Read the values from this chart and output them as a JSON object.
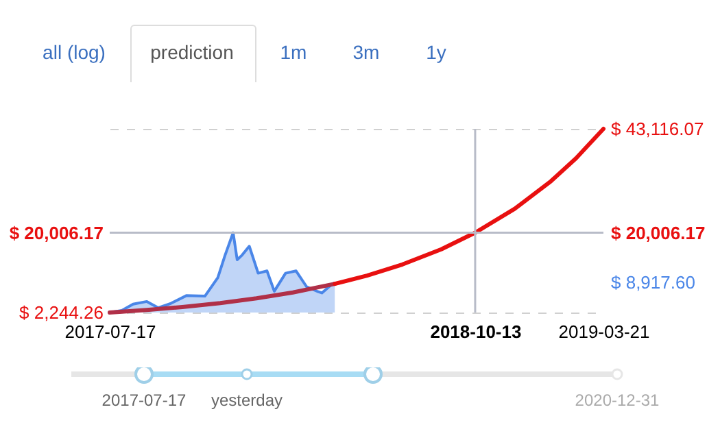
{
  "chart_data": {
    "type": "line",
    "series": [
      {
        "type": "area",
        "color": "#4a86e8",
        "x": [
          "2017-07-17",
          "2017-08-01",
          "2017-08-15",
          "2017-09-01",
          "2017-09-15",
          "2017-10-01",
          "2017-10-20",
          "2017-11-12",
          "2017-11-28",
          "2017-12-07",
          "2017-12-17",
          "2017-12-22",
          "2017-12-28",
          "2018-01-06",
          "2018-01-17",
          "2018-01-28",
          "2018-02-06",
          "2018-02-20",
          "2018-03-05",
          "2018-03-18",
          "2018-04-01",
          "2018-04-06",
          "2018-04-15",
          "2018-04-22"
        ],
        "values": [
          2244.26,
          2700,
          4100,
          4700,
          3300,
          4300,
          6000,
          5900,
          10000,
          15000,
          20006.17,
          14000,
          15000,
          17000,
          11000,
          11500,
          7000,
          11000,
          11500,
          8000,
          6900,
          6600,
          8000,
          8917.6
        ]
      },
      {
        "color": "#b03048",
        "x": [
          "2017-07-17",
          "2017-09-01",
          "2017-10-15",
          "2017-12-01",
          "2018-01-15",
          "2018-03-01",
          "2018-04-22"
        ],
        "values": [
          2244.26,
          2800,
          3470,
          4350,
          5400,
          6710,
          8630
        ]
      },
      {
        "color": "#e81010",
        "x": [
          "2018-04-22",
          "2018-06-01",
          "2018-07-15",
          "2018-09-01",
          "2018-10-13",
          "2018-12-01",
          "2019-01-15",
          "2019-02-15",
          "2019-03-21"
        ],
        "values": [
          8630,
          10470,
          12950,
          16320,
          20006.17,
          25330,
          31480,
          36560,
          43116.07
        ]
      }
    ],
    "xlim": [
      "2017-07-17",
      "2019-03-21"
    ],
    "xticks": [
      "2017-07-17",
      "2018-10-13",
      "2019-03-21"
    ],
    "ylim": [
      2244.26,
      43116.07
    ],
    "yticks": [
      {
        "value": 2244.26,
        "label": "$ 2,244.26"
      },
      {
        "value": 20006.17,
        "label": "$ 20,006.17"
      },
      {
        "value": 43116.07,
        "label": null
      }
    ],
    "y2lim": [
      2244.26,
      43116.07
    ],
    "y2ticks": [
      {
        "value": 43116.07,
        "label": "$ 43,116.07"
      },
      {
        "value": 20006.17,
        "label": "$ 20,006.17"
      },
      {
        "value": 8917.6,
        "label": "$ 8,917.60"
      }
    ],
    "grid": "y",
    "ref_lines": [
      {
        "axis": "x",
        "value": "2018-10-13",
        "color": "#b8bcc8"
      },
      {
        "axis": "y2",
        "value": 20006.17,
        "color": "#b8bcc8"
      }
    ],
    "annotations": [
      "all (log)",
      "prediction",
      "1m",
      "3m",
      "1y",
      "2017-07-17",
      "yesterday",
      "2020-12-31"
    ]
  }
}
